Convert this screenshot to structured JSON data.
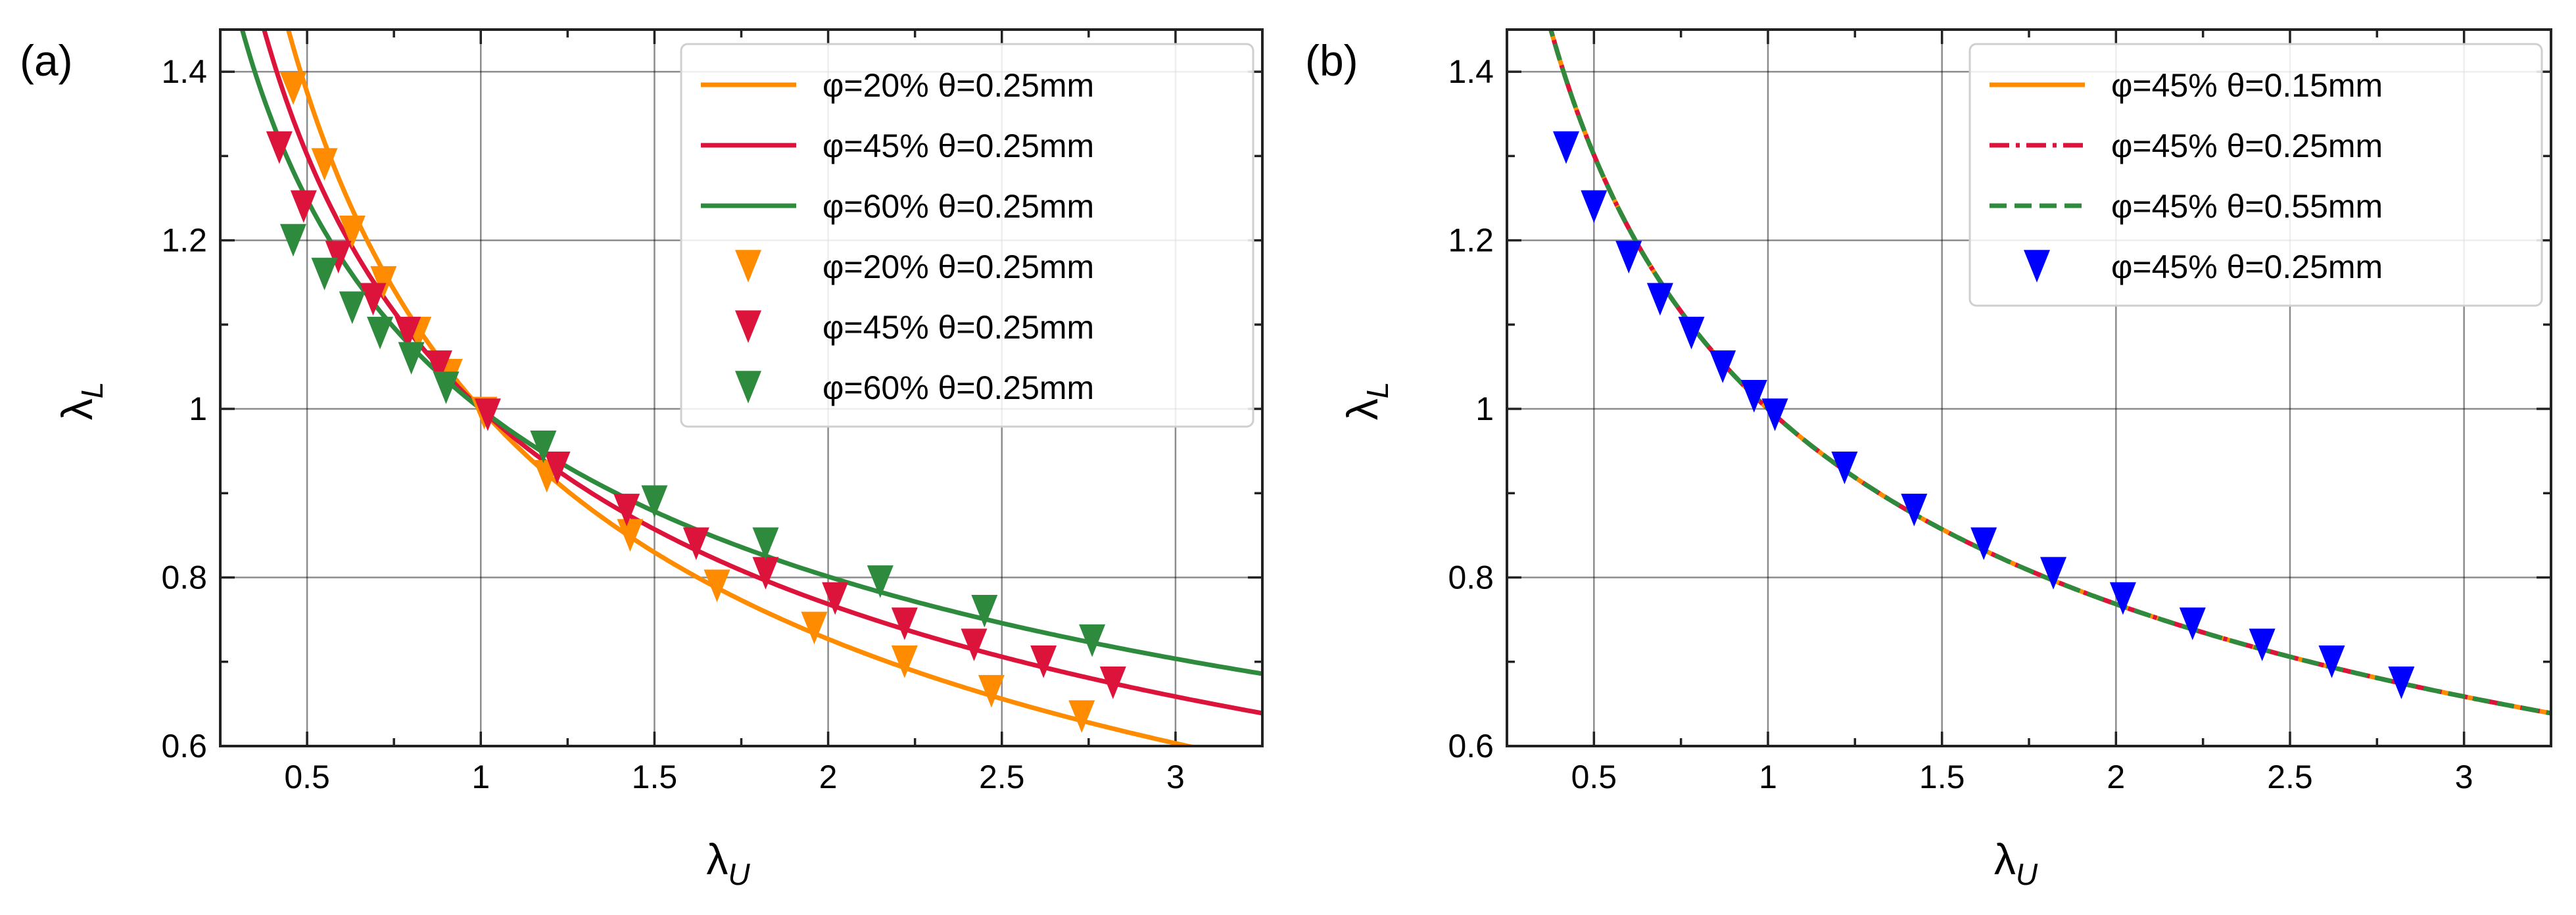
{
  "chart_data": [
    {
      "type": "line",
      "panel_label": "(a)",
      "xlabel": {
        "main": "λ",
        "sub": "U"
      },
      "ylabel": {
        "main": "λ",
        "sub": "L"
      },
      "xlim": [
        0.25,
        3.25
      ],
      "ylim": [
        0.6,
        1.45
      ],
      "xticks": [
        0.5,
        1,
        1.5,
        2,
        2.5,
        3
      ],
      "xtick_labels": [
        "0.5",
        "1",
        "1.5",
        "2",
        "2.5",
        "3"
      ],
      "yticks": [
        0.6,
        0.8,
        1.0,
        1.2,
        1.4
      ],
      "ytick_labels": [
        "0.6",
        "0.8",
        "1",
        "1.2",
        "1.4"
      ],
      "grid": true,
      "legend_position": "top-right",
      "series": [
        {
          "name": "φ=20% θ=0.25mm",
          "kind": "line",
          "style": "solid",
          "color": "#FF8C00",
          "exponent": -0.46
        },
        {
          "name": "φ=45% θ=0.25mm",
          "kind": "line",
          "style": "solid",
          "color": "#DC143C",
          "exponent": -0.38
        },
        {
          "name": "φ=60% θ=0.25mm",
          "kind": "line",
          "style": "solid",
          "color": "#2E8B3E",
          "exponent": -0.32
        },
        {
          "name": "φ=20% θ=0.25mm",
          "kind": "marker",
          "color": "#FF8C00",
          "x": [
            0.46,
            0.55,
            0.63,
            0.72,
            0.82,
            0.91,
            1.01,
            1.19,
            1.43,
            1.68,
            1.96,
            2.22,
            2.47,
            2.73
          ],
          "y": [
            1.38,
            1.29,
            1.21,
            1.15,
            1.09,
            1.04,
            0.995,
            0.92,
            0.85,
            0.79,
            0.74,
            0.7,
            0.665,
            0.635
          ]
        },
        {
          "name": "φ=45% θ=0.25mm",
          "kind": "marker",
          "color": "#DC143C",
          "x": [
            0.42,
            0.49,
            0.59,
            0.69,
            0.79,
            0.88,
            1.02,
            1.22,
            1.42,
            1.62,
            1.82,
            2.02,
            2.22,
            2.42,
            2.62,
            2.82
          ],
          "y": [
            1.31,
            1.24,
            1.18,
            1.13,
            1.09,
            1.05,
            0.993,
            0.93,
            0.88,
            0.84,
            0.805,
            0.775,
            0.745,
            0.72,
            0.7,
            0.675
          ]
        },
        {
          "name": "φ=60% θ=0.25mm",
          "kind": "marker",
          "color": "#2E8B3E",
          "x": [
            0.46,
            0.55,
            0.63,
            0.71,
            0.8,
            0.9,
            1.18,
            1.5,
            1.82,
            2.15,
            2.45,
            2.76
          ],
          "y": [
            1.2,
            1.16,
            1.12,
            1.09,
            1.06,
            1.025,
            0.955,
            0.89,
            0.84,
            0.795,
            0.76,
            0.725
          ]
        }
      ]
    },
    {
      "type": "line",
      "panel_label": "(b)",
      "xlabel": {
        "main": "λ",
        "sub": "U"
      },
      "ylabel": {
        "main": "λ",
        "sub": "L"
      },
      "xlim": [
        0.25,
        3.25
      ],
      "ylim": [
        0.6,
        1.45
      ],
      "xticks": [
        0.5,
        1,
        1.5,
        2,
        2.5,
        3
      ],
      "xtick_labels": [
        "0.5",
        "1",
        "1.5",
        "2",
        "2.5",
        "3"
      ],
      "yticks": [
        0.6,
        0.8,
        1.0,
        1.2,
        1.4
      ],
      "ytick_labels": [
        "0.6",
        "0.8",
        "1",
        "1.2",
        "1.4"
      ],
      "grid": true,
      "legend_position": "top-right",
      "series": [
        {
          "name": "φ=45% θ=0.15mm",
          "kind": "line",
          "style": "solid",
          "color": "#FF8C00",
          "exponent": -0.38
        },
        {
          "name": "φ=45% θ=0.25mm",
          "kind": "line",
          "style": "dashdot",
          "color": "#DC143C",
          "exponent": -0.38
        },
        {
          "name": "φ=45% θ=0.55mm",
          "kind": "line",
          "style": "dashed",
          "color": "#2E8B3E",
          "exponent": -0.38
        },
        {
          "name": "φ=45% θ=0.25mm",
          "kind": "marker",
          "color": "#0000FF",
          "x": [
            0.42,
            0.5,
            0.6,
            0.69,
            0.78,
            0.87,
            0.96,
            1.02,
            1.22,
            1.42,
            1.62,
            1.82,
            2.02,
            2.22,
            2.42,
            2.62,
            2.82
          ],
          "y": [
            1.31,
            1.24,
            1.18,
            1.13,
            1.09,
            1.05,
            1.015,
            0.993,
            0.93,
            0.88,
            0.84,
            0.805,
            0.775,
            0.745,
            0.72,
            0.7,
            0.675
          ]
        }
      ]
    }
  ]
}
